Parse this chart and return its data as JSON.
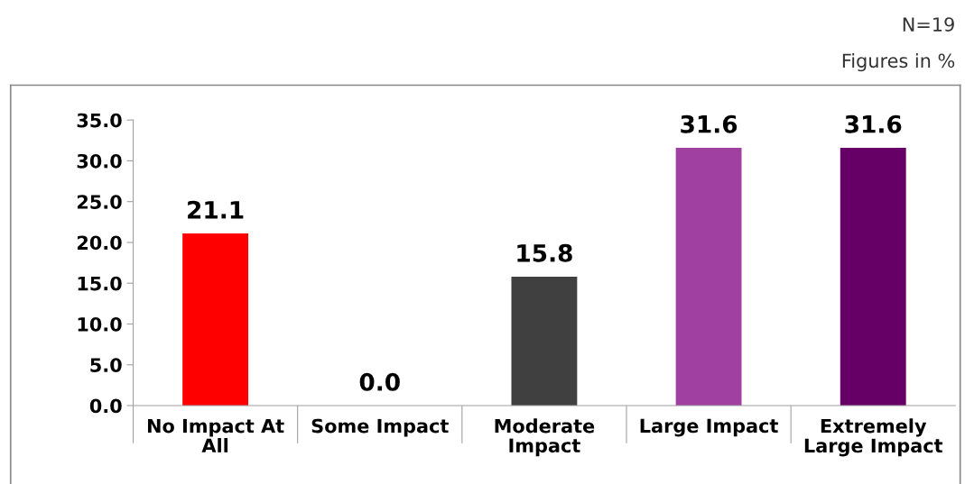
{
  "chart_data": {
    "type": "bar",
    "categories": [
      "No Impact At All",
      "Some Impact",
      "Moderate Impact",
      "Large Impact",
      "Extremely Large Impact"
    ],
    "values": [
      21.1,
      0.0,
      15.8,
      31.6,
      31.6
    ],
    "colors": [
      "#ff0000",
      "#808080",
      "#404040",
      "#a040a0",
      "#660066"
    ],
    "value_labels": [
      "21.1",
      "0.0",
      "15.8",
      "31.6",
      "31.6"
    ],
    "ylim": [
      0,
      35
    ],
    "yticks": [
      {
        "value": 0,
        "label": "0.0"
      },
      {
        "value": 5,
        "label": "5.0"
      },
      {
        "value": 10,
        "label": "10.0"
      },
      {
        "value": 15,
        "label": "15.0"
      },
      {
        "value": 20,
        "label": "20.0"
      },
      {
        "value": 25,
        "label": "25.0"
      },
      {
        "value": 30,
        "label": "30.0"
      },
      {
        "value": 35,
        "label": "35.0"
      }
    ],
    "annotations": [
      "N=19",
      "Figures in %"
    ],
    "grid": false,
    "legend": false
  }
}
